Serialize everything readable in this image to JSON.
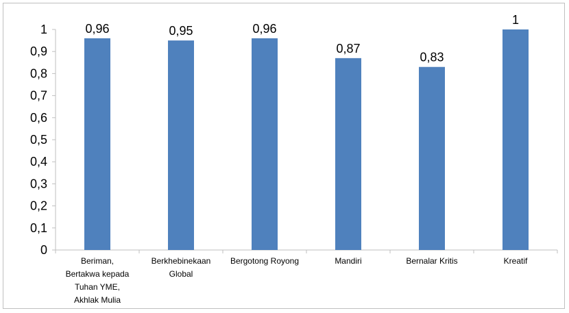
{
  "chart_data": {
    "type": "bar",
    "categories": [
      "Beriman, Bertakwa kepada Tuhan YME, Akhlak Mulia",
      "Berkhebinekaan Global",
      "Bergotong Royong",
      "Mandiri",
      "Bernalar Kritis",
      "Kreatif"
    ],
    "category_lines": [
      [
        "Beriman,",
        "Bertakwa kepada",
        "Tuhan YME,",
        "Akhlak Mulia"
      ],
      [
        "Berkhebinekaan",
        "Global"
      ],
      [
        "Bergotong Royong"
      ],
      [
        "Mandiri"
      ],
      [
        "Bernalar Kritis"
      ],
      [
        "Kreatif"
      ]
    ],
    "values": [
      0.96,
      0.95,
      0.96,
      0.87,
      0.83,
      1
    ],
    "data_labels": [
      "0,96",
      "0,95",
      "0,96",
      "0,87",
      "0,83",
      "1"
    ],
    "ylim": [
      0,
      1
    ],
    "y_ticks": [
      "0",
      "0,1",
      "0,2",
      "0,3",
      "0,4",
      "0,5",
      "0,6",
      "0,7",
      "0,8",
      "0,9",
      "1"
    ],
    "title": "",
    "xlabel": "",
    "ylabel": "",
    "grid": false,
    "legend": "none",
    "bar_color": "#4f81bd",
    "axis_color": "#bfbfbf"
  }
}
